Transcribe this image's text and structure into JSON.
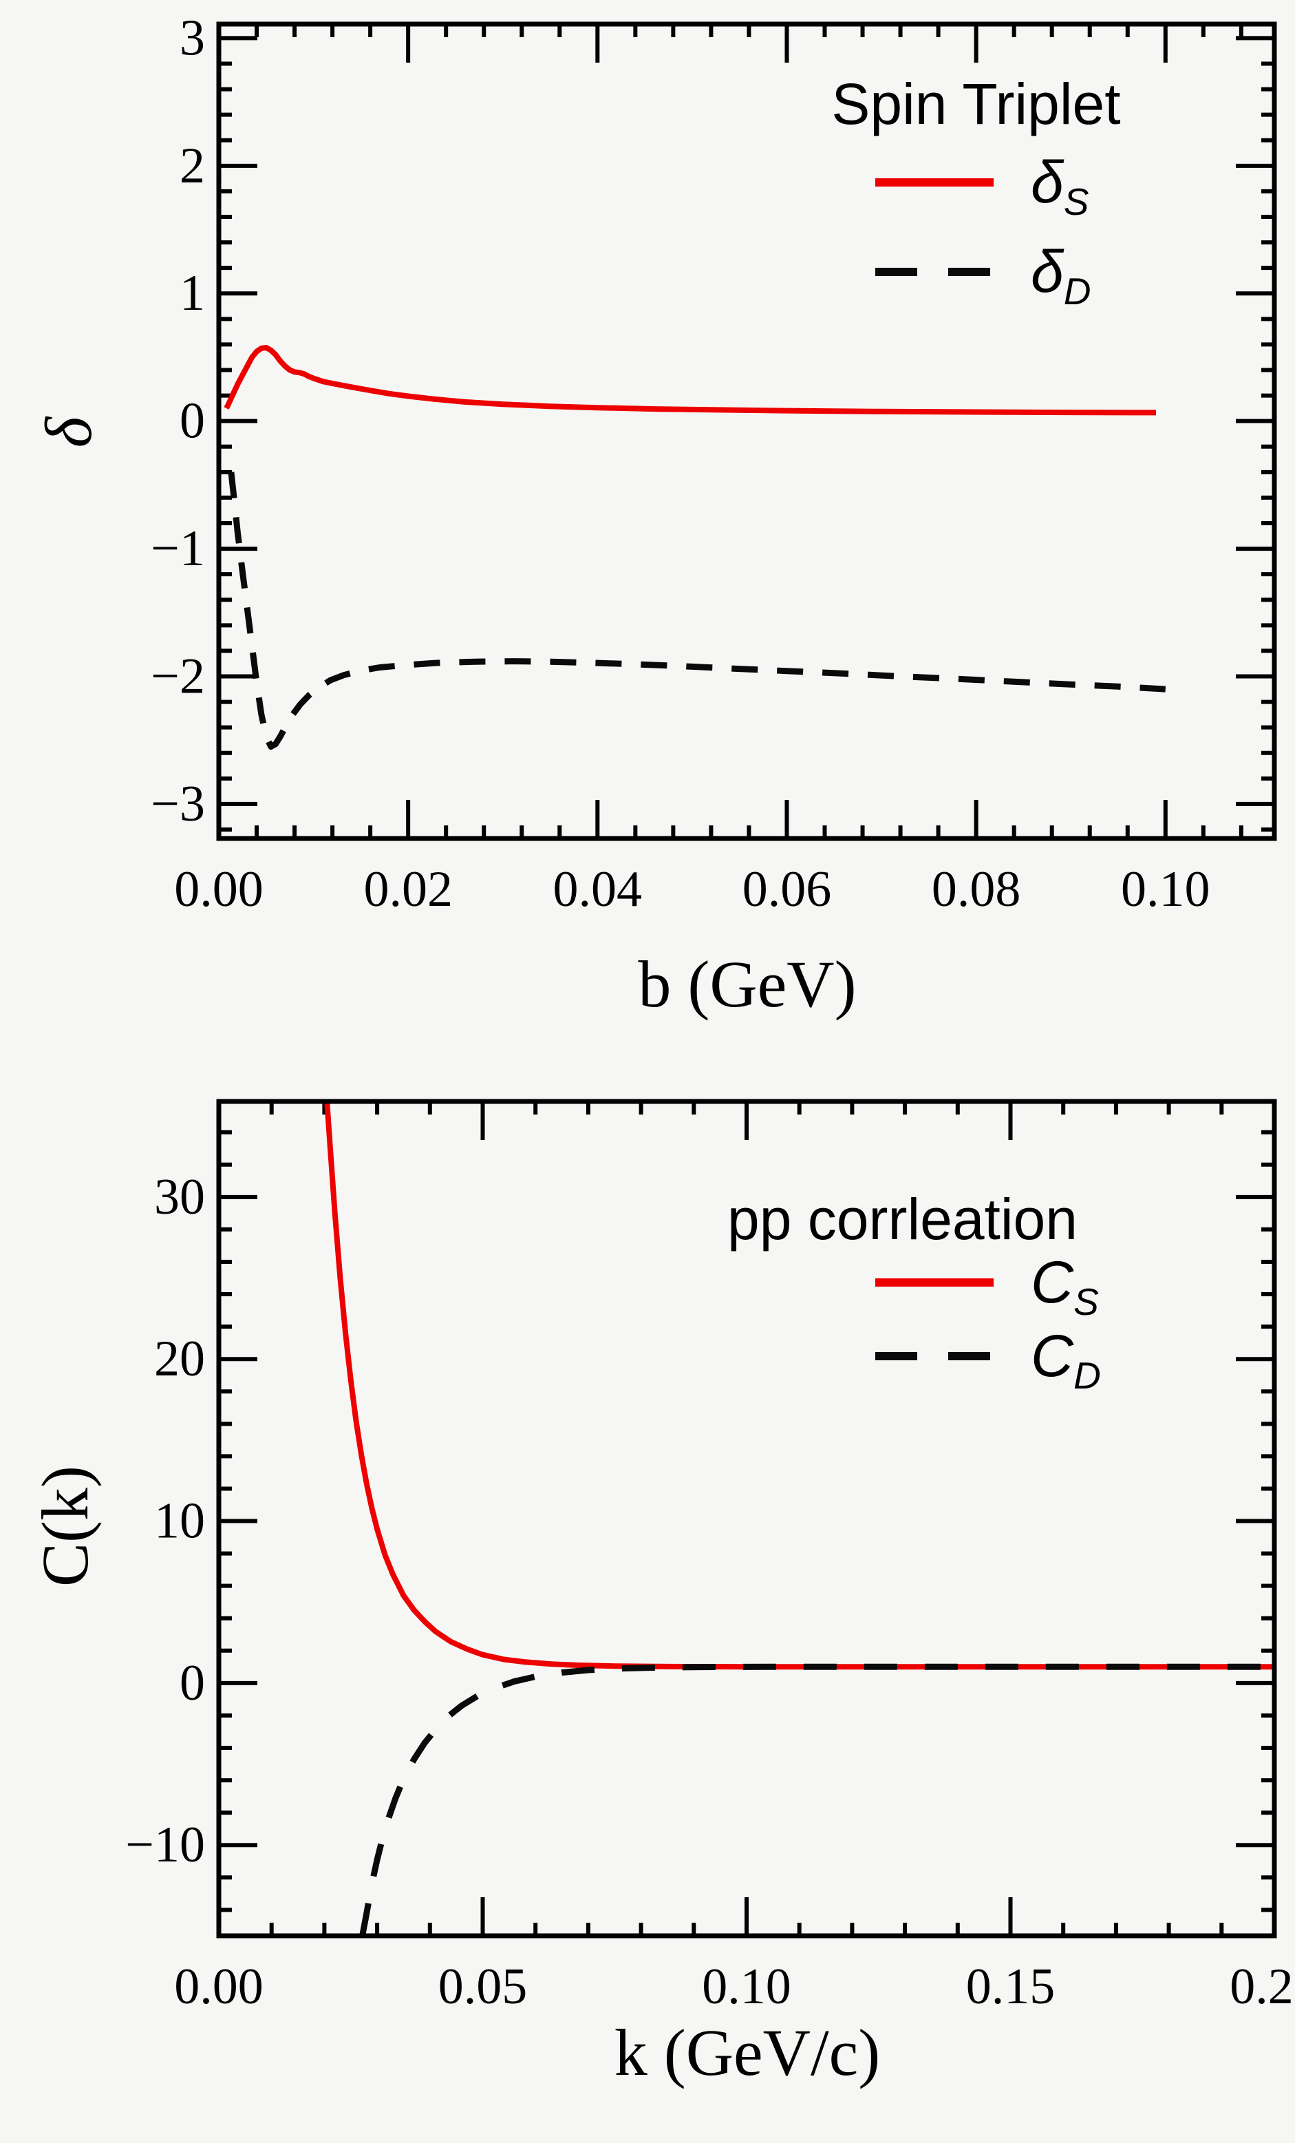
{
  "figure": {
    "background": "#f6f6f5",
    "frame_color": "#000000"
  },
  "chart_data": [
    {
      "type": "line",
      "panel": "top",
      "legend": {
        "title": "Spin Triplet",
        "position": "top-right",
        "entries": [
          {
            "symbol": "δ",
            "sub": "S",
            "line_style": "solid",
            "color": "#ec0000"
          },
          {
            "symbol": "δ",
            "sub": "D",
            "line_style": "dashed",
            "color": "#0a0a0a"
          }
        ]
      },
      "xlabel": "b (GeV)",
      "ylabel": "δ",
      "xlim": [
        0,
        0.1115
      ],
      "ylim": [
        -3.27,
        3.11
      ],
      "grid": false,
      "xticks": {
        "values": [
          0,
          0.02,
          0.04,
          0.06,
          0.08,
          0.1
        ],
        "labels": [
          "0.00",
          "0.02",
          "0.04",
          "0.06",
          "0.08",
          "0.10"
        ],
        "minor_step": 0.004
      },
      "yticks": {
        "values": [
          3,
          2,
          1,
          0,
          -1,
          -2,
          -3
        ],
        "labels": [
          "3",
          "2",
          "1",
          "0",
          "−1",
          "−2",
          "−3"
        ],
        "minor_step": 0.2
      },
      "series": [
        {
          "name": "delta_S",
          "color": "#ec0000",
          "style": "solid",
          "width": 8,
          "points": [
            [
              0.0008,
              0.1
            ],
            [
              0.001,
              0.13
            ],
            [
              0.0015,
              0.21
            ],
            [
              0.002,
              0.29
            ],
            [
              0.0025,
              0.36
            ],
            [
              0.003,
              0.43
            ],
            [
              0.0035,
              0.5
            ],
            [
              0.004,
              0.545
            ],
            [
              0.0045,
              0.57
            ],
            [
              0.005,
              0.575
            ],
            [
              0.0055,
              0.555
            ],
            [
              0.006,
              0.52
            ],
            [
              0.0065,
              0.47
            ],
            [
              0.007,
              0.43
            ],
            [
              0.0075,
              0.4
            ],
            [
              0.008,
              0.385
            ],
            [
              0.0085,
              0.38
            ],
            [
              0.009,
              0.37
            ],
            [
              0.0095,
              0.35
            ],
            [
              0.01,
              0.335
            ],
            [
              0.011,
              0.31
            ],
            [
              0.012,
              0.295
            ],
            [
              0.013,
              0.28
            ],
            [
              0.0145,
              0.26
            ],
            [
              0.016,
              0.24
            ],
            [
              0.018,
              0.215
            ],
            [
              0.02,
              0.195
            ],
            [
              0.023,
              0.17
            ],
            [
              0.026,
              0.15
            ],
            [
              0.03,
              0.132
            ],
            [
              0.035,
              0.116
            ],
            [
              0.04,
              0.105
            ],
            [
              0.046,
              0.095
            ],
            [
              0.052,
              0.088
            ],
            [
              0.06,
              0.081
            ],
            [
              0.07,
              0.075
            ],
            [
              0.08,
              0.071
            ],
            [
              0.09,
              0.068
            ],
            [
              0.099,
              0.066
            ]
          ]
        },
        {
          "name": "delta_D",
          "color": "#0a0a0a",
          "style": "dashed",
          "width": 9,
          "dash": [
            38,
            28
          ],
          "points": [
            [
              0.0013,
              -0.4
            ],
            [
              0.0016,
              -0.6
            ],
            [
              0.002,
              -0.88
            ],
            [
              0.0025,
              -1.18
            ],
            [
              0.003,
              -1.47
            ],
            [
              0.0035,
              -1.76
            ],
            [
              0.004,
              -2.05
            ],
            [
              0.0045,
              -2.3
            ],
            [
              0.005,
              -2.47
            ],
            [
              0.0055,
              -2.55
            ],
            [
              0.006,
              -2.53
            ],
            [
              0.0065,
              -2.47
            ],
            [
              0.007,
              -2.4
            ],
            [
              0.0078,
              -2.3
            ],
            [
              0.0086,
              -2.22
            ],
            [
              0.0095,
              -2.15
            ],
            [
              0.0105,
              -2.09
            ],
            [
              0.0118,
              -2.03
            ],
            [
              0.0132,
              -1.99
            ],
            [
              0.015,
              -1.955
            ],
            [
              0.017,
              -1.93
            ],
            [
              0.02,
              -1.91
            ],
            [
              0.023,
              -1.895
            ],
            [
              0.027,
              -1.885
            ],
            [
              0.031,
              -1.882
            ],
            [
              0.035,
              -1.885
            ],
            [
              0.039,
              -1.893
            ],
            [
              0.044,
              -1.905
            ],
            [
              0.049,
              -1.92
            ],
            [
              0.054,
              -1.938
            ],
            [
              0.06,
              -1.958
            ],
            [
              0.066,
              -1.978
            ],
            [
              0.072,
              -2.0
            ],
            [
              0.078,
              -2.02
            ],
            [
              0.084,
              -2.042
            ],
            [
              0.09,
              -2.063
            ],
            [
              0.095,
              -2.08
            ],
            [
              0.1,
              -2.1
            ]
          ]
        }
      ]
    },
    {
      "type": "line",
      "panel": "bottom",
      "legend": {
        "title": "pp corrleation",
        "position": "top-right",
        "entries": [
          {
            "symbol": "C",
            "sub": "S",
            "line_style": "solid",
            "color": "#ec0000"
          },
          {
            "symbol": "C",
            "sub": "D",
            "line_style": "dashed",
            "color": "#0a0a0a"
          }
        ]
      },
      "xlabel": "k (GeV/c)",
      "ylabel": "C(k)",
      "xlim": [
        0,
        0.2
      ],
      "ylim": [
        -15.6,
        35.9
      ],
      "grid": false,
      "xticks": {
        "values": [
          0,
          0.05,
          0.1,
          0.15,
          0.2
        ],
        "labels": [
          "0.00",
          "0.05",
          "0.10",
          "0.15",
          "0.20"
        ],
        "minor_step": 0.01
      },
      "yticks": {
        "values": [
          30,
          20,
          10,
          0,
          -10
        ],
        "labels": [
          "30",
          "20",
          "10",
          "0",
          "−10"
        ],
        "minor_step": 2
      },
      "series": [
        {
          "name": "C_S",
          "color": "#ec0000",
          "style": "solid",
          "width": 8,
          "points": [
            [
              0.0205,
              35.9
            ],
            [
              0.021,
              33.5
            ],
            [
              0.022,
              29.0
            ],
            [
              0.023,
              25.0
            ],
            [
              0.024,
              21.6
            ],
            [
              0.025,
              18.7
            ],
            [
              0.026,
              16.2
            ],
            [
              0.027,
              14.1
            ],
            [
              0.028,
              12.3
            ],
            [
              0.029,
              10.8
            ],
            [
              0.03,
              9.5
            ],
            [
              0.0315,
              7.9
            ],
            [
              0.033,
              6.7
            ],
            [
              0.035,
              5.4
            ],
            [
              0.037,
              4.5
            ],
            [
              0.039,
              3.8
            ],
            [
              0.041,
              3.2
            ],
            [
              0.044,
              2.55
            ],
            [
              0.047,
              2.1
            ],
            [
              0.05,
              1.75
            ],
            [
              0.054,
              1.46
            ],
            [
              0.058,
              1.3
            ],
            [
              0.063,
              1.17
            ],
            [
              0.068,
              1.1
            ],
            [
              0.075,
              1.05
            ],
            [
              0.085,
              1.02
            ],
            [
              0.1,
              1.0
            ],
            [
              0.13,
              1.0
            ],
            [
              0.16,
              1.0
            ],
            [
              0.2,
              1.0
            ]
          ]
        },
        {
          "name": "C_D",
          "color": "#0a0a0a",
          "style": "dashed",
          "width": 9,
          "dash": [
            48,
            40
          ],
          "points": [
            [
              0.0272,
              -15.6
            ],
            [
              0.028,
              -14.2
            ],
            [
              0.029,
              -12.4
            ],
            [
              0.03,
              -10.9
            ],
            [
              0.031,
              -9.6
            ],
            [
              0.032,
              -8.5
            ],
            [
              0.0335,
              -7.1
            ],
            [
              0.035,
              -5.9
            ],
            [
              0.037,
              -4.7
            ],
            [
              0.039,
              -3.7
            ],
            [
              0.041,
              -2.9
            ],
            [
              0.0435,
              -2.05
            ],
            [
              0.046,
              -1.4
            ],
            [
              0.049,
              -0.8
            ],
            [
              0.052,
              -0.35
            ],
            [
              0.056,
              0.1
            ],
            [
              0.06,
              0.4
            ],
            [
              0.065,
              0.65
            ],
            [
              0.07,
              0.8
            ],
            [
              0.076,
              0.9
            ],
            [
              0.083,
              0.96
            ],
            [
              0.092,
              0.99
            ],
            [
              0.105,
              1.0
            ],
            [
              0.14,
              1.0
            ],
            [
              0.17,
              1.0
            ],
            [
              0.2,
              1.0
            ]
          ]
        }
      ]
    }
  ]
}
